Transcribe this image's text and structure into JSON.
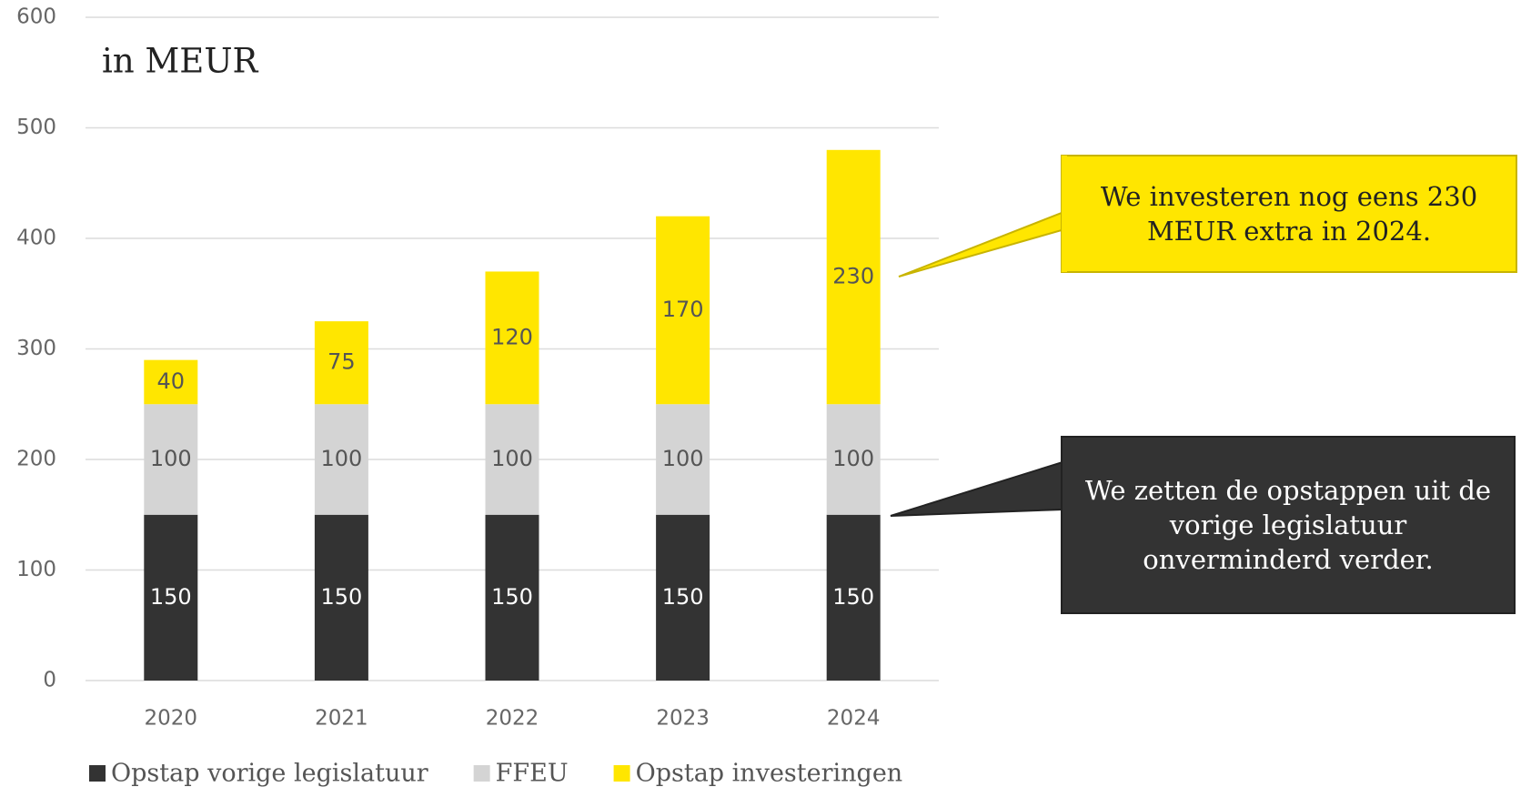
{
  "chart_data": {
    "type": "stacked_bar",
    "title": "in MEUR",
    "categories": [
      "2020",
      "2021",
      "2022",
      "2023",
      "2024"
    ],
    "series": [
      {
        "name": "Opstap vorige legislatuur",
        "color": "#333333",
        "values": [
          150,
          150,
          150,
          150,
          150
        ]
      },
      {
        "name": "FFEU",
        "color": "#d4d4d4",
        "values": [
          100,
          100,
          100,
          100,
          100
        ]
      },
      {
        "name": "Opstap investeringen",
        "color": "#ffe600",
        "values": [
          40,
          75,
          120,
          170,
          230
        ]
      }
    ],
    "ylim": [
      0,
      600
    ],
    "yticks": [
      0,
      100,
      200,
      300,
      400,
      500,
      600
    ],
    "grid": true,
    "legend": "bottom",
    "annotations": [
      "We investeren nog eens 230 MEUR extra in 2024.",
      "We zetten de opstappen uit de vorige legislatuur onverminderd verder."
    ]
  }
}
